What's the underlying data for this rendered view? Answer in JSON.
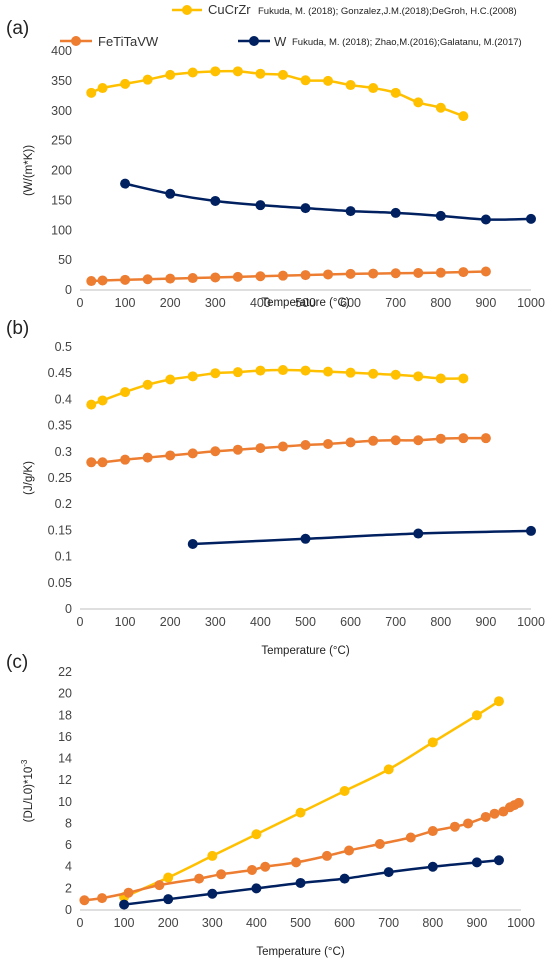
{
  "legend": {
    "items": [
      {
        "name": "CuCrZr",
        "source": "Fukuda, M. (2018); Gonzalez,J.M.(2018);DeGroh, H.C.(2008)",
        "color": "#FFC000"
      },
      {
        "name": "FeTiTaVW",
        "source": "",
        "color": "#ED7D31"
      },
      {
        "name": "W",
        "source": "Fukuda, M. (2018); Zhao,M.(2016);Galatanu, M.(2017)",
        "color": "#002060"
      }
    ]
  },
  "chart_data": [
    {
      "panel": "(a)",
      "type": "line",
      "title": "",
      "xlabel": "Temperature (°C)",
      "ylabel": "(W/(m*K))",
      "xlim": [
        0,
        1000
      ],
      "ylim": [
        0,
        400
      ],
      "xticks": [
        0,
        100,
        200,
        300,
        400,
        500,
        600,
        700,
        800,
        900,
        1000
      ],
      "yticks": [
        0,
        50,
        100,
        150,
        200,
        250,
        300,
        350,
        400
      ],
      "grid": false,
      "series": [
        {
          "name": "CuCrZr",
          "color": "#FFC000",
          "x": [
            25,
            50,
            100,
            150,
            200,
            250,
            300,
            350,
            400,
            450,
            500,
            550,
            600,
            650,
            700,
            750,
            800,
            850
          ],
          "y": [
            330,
            338,
            345,
            352,
            360,
            364,
            366,
            366,
            362,
            360,
            351,
            350,
            343,
            338,
            330,
            314,
            305,
            291
          ]
        },
        {
          "name": "FeTiTaVW",
          "color": "#ED7D31",
          "x": [
            25,
            50,
            100,
            150,
            200,
            250,
            300,
            350,
            400,
            450,
            500,
            550,
            600,
            650,
            700,
            750,
            800,
            850,
            900
          ],
          "y": [
            15,
            16,
            17,
            18,
            19,
            20,
            21,
            22,
            23,
            24,
            25,
            26,
            27,
            27.5,
            28,
            28.5,
            29,
            30,
            31
          ]
        },
        {
          "name": "W",
          "color": "#002060",
          "x": [
            100,
            200,
            300,
            400,
            500,
            600,
            700,
            800,
            900,
            1000
          ],
          "y": [
            178,
            161,
            149,
            142,
            137,
            132,
            129,
            124,
            118,
            119
          ]
        }
      ]
    },
    {
      "panel": "(b)",
      "type": "line",
      "title": "",
      "xlabel": "Temperature (°C)",
      "ylabel": "(J/g/K)",
      "xlim": [
        0,
        1000
      ],
      "ylim": [
        0,
        0.5
      ],
      "xticks": [
        0,
        100,
        200,
        300,
        400,
        500,
        600,
        700,
        800,
        900,
        1000
      ],
      "yticks": [
        "0",
        "0.05",
        "0.1",
        "0.15",
        "0.2",
        "0.25",
        "0.3",
        "0.35",
        "0.4",
        "0.45",
        "0.5"
      ],
      "grid": false,
      "series": [
        {
          "name": "CuCrZr",
          "color": "#FFC000",
          "x": [
            25,
            50,
            100,
            150,
            200,
            250,
            300,
            350,
            400,
            450,
            500,
            550,
            600,
            650,
            700,
            750,
            800,
            850
          ],
          "y": [
            0.39,
            0.398,
            0.414,
            0.428,
            0.438,
            0.444,
            0.45,
            0.452,
            0.455,
            0.456,
            0.455,
            0.453,
            0.451,
            0.449,
            0.447,
            0.444,
            0.44,
            0.44
          ]
        },
        {
          "name": "FeTiTaVW",
          "color": "#ED7D31",
          "x": [
            25,
            50,
            100,
            150,
            200,
            250,
            300,
            350,
            400,
            450,
            500,
            550,
            600,
            650,
            700,
            750,
            800,
            850,
            900
          ],
          "y": [
            0.28,
            0.28,
            0.285,
            0.289,
            0.293,
            0.297,
            0.301,
            0.304,
            0.307,
            0.31,
            0.313,
            0.315,
            0.318,
            0.321,
            0.322,
            0.322,
            0.325,
            0.326,
            0.326
          ]
        },
        {
          "name": "W",
          "color": "#002060",
          "x": [
            250,
            500,
            750,
            1000
          ],
          "y": [
            0.124,
            0.134,
            0.144,
            0.149
          ]
        }
      ]
    },
    {
      "panel": "(c)",
      "type": "line",
      "title": "",
      "xlabel": "Temperature (°C)",
      "ylabel": "(DL/L0)*10",
      "ylabel_superscript": "-3",
      "xlim": [
        0,
        1000
      ],
      "ylim": [
        0,
        22
      ],
      "xticks": [
        0,
        100,
        200,
        300,
        400,
        500,
        600,
        700,
        800,
        900,
        1000
      ],
      "yticks": [
        0,
        2,
        4,
        6,
        8,
        10,
        12,
        14,
        16,
        18,
        20,
        22
      ],
      "grid": false,
      "series": [
        {
          "name": "CuCrZr",
          "color": "#FFC000",
          "x": [
            100,
            200,
            300,
            400,
            500,
            600,
            700,
            800,
            900,
            950
          ],
          "y": [
            1.2,
            3.0,
            5.0,
            7.0,
            9.0,
            11.0,
            13.0,
            15.5,
            18.0,
            19.3
          ]
        },
        {
          "name": "FeTiTaVW",
          "color": "#ED7D31",
          "x": [
            10,
            50,
            110,
            180,
            270,
            320,
            390,
            420,
            490,
            560,
            610,
            680,
            750,
            800,
            850,
            880,
            920,
            940,
            960,
            975,
            985,
            995
          ],
          "y": [
            0.9,
            1.1,
            1.6,
            2.3,
            2.9,
            3.3,
            3.7,
            4.0,
            4.4,
            5.0,
            5.5,
            6.1,
            6.7,
            7.3,
            7.7,
            8.0,
            8.6,
            8.9,
            9.1,
            9.5,
            9.7,
            9.9
          ]
        },
        {
          "name": "W",
          "color": "#002060",
          "x": [
            100,
            200,
            300,
            400,
            500,
            600,
            700,
            800,
            900,
            950
          ],
          "y": [
            0.5,
            1.0,
            1.5,
            2.0,
            2.5,
            2.9,
            3.5,
            4.0,
            4.4,
            4.6
          ]
        }
      ]
    }
  ]
}
